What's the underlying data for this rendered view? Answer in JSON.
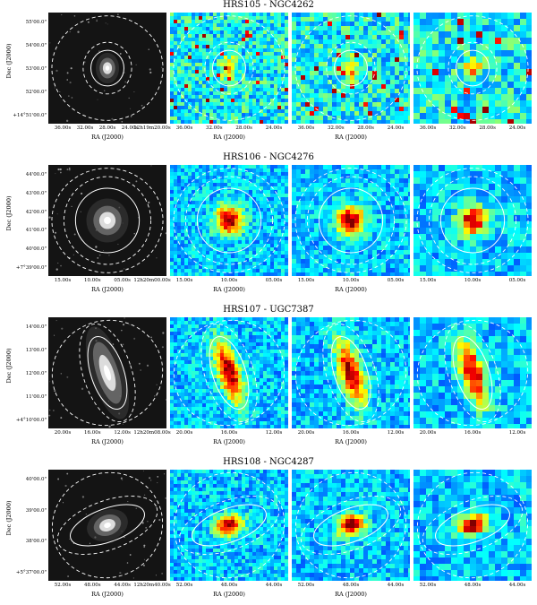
{
  "figure": {
    "rows": [
      {
        "title": "HRS105 - NGC4262",
        "ylabel": "Dec (J2000)",
        "yticks": [
          "55'00.0\"",
          "54'00.0\"",
          "53'00.0\"",
          "52'00.0\"",
          "+14°51'00.0\""
        ],
        "xlabel": "RA (J2000)",
        "xticks_optical": [
          "36.00s",
          "32.00s",
          "28.00s",
          "24.00s",
          "12h19m20.00s"
        ],
        "xticks_maps": [
          "36.00s",
          "32.00s",
          "28.00s",
          "24.00s"
        ],
        "inner_ellipse": {
          "rx": 0.14,
          "ry": 0.16,
          "angle": 0
        },
        "blob": {
          "rx": 0.05,
          "ry": 0.07,
          "angle": 0
        },
        "map_style": "faint"
      },
      {
        "title": "HRS106 - NGC4276",
        "ylabel": "Dec (J2000)",
        "yticks": [
          "44'00.0\"",
          "43'00.0\"",
          "42'00.0\"",
          "41'00.0\"",
          "40'00.0\"",
          "+7°39'00.0\""
        ],
        "xlabel": "RA (J2000)",
        "xticks_optical": [
          "15.00s",
          "10.00s",
          "05.00s",
          "12h20m00.00s"
        ],
        "xticks_maps": [
          "15.00s",
          "10.00s",
          "05.00s"
        ],
        "inner_ellipse": {
          "rx": 0.27,
          "ry": 0.29,
          "angle": 0
        },
        "blob": {
          "rx": 0.09,
          "ry": 0.1,
          "angle": 0
        },
        "map_style": "compact"
      },
      {
        "title": "HRS107 - UGC7387",
        "ylabel": "Dec (J2000)",
        "yticks": [
          "14'00.0\"",
          "13'00.0\"",
          "12'00.0\"",
          "11'00.0\"",
          "+4°10'00.0\""
        ],
        "xlabel": "RA (J2000)",
        "xticks_optical": [
          "20.00s",
          "16.00s",
          "12.00s",
          "12h20m08.00s"
        ],
        "xticks_maps": [
          "20.00s",
          "16.00s",
          "12.00s"
        ],
        "inner_ellipse": {
          "rx": 0.14,
          "ry": 0.34,
          "angle": -18
        },
        "blob": {
          "rx": 0.07,
          "ry": 0.22,
          "angle": -18
        },
        "map_style": "edge"
      },
      {
        "title": "HRS108 - NGC4287",
        "ylabel": "Dec (J2000)",
        "yticks": [
          "40'00.0\"",
          "39'00.0\"",
          "38'00.0\"",
          "+5°37'00.0\""
        ],
        "xlabel": "RA (J2000)",
        "xticks_optical": [
          "52.00s",
          "48.00s",
          "44.00s",
          "12h20m40.00s"
        ],
        "xticks_maps": [
          "52.00s",
          "48.00s",
          "44.00s"
        ],
        "inner_ellipse": {
          "rx": 0.33,
          "ry": 0.15,
          "angle": -20
        },
        "blob": {
          "rx": 0.09,
          "ry": 0.07,
          "angle": -20
        },
        "map_style": "tilted"
      }
    ]
  }
}
